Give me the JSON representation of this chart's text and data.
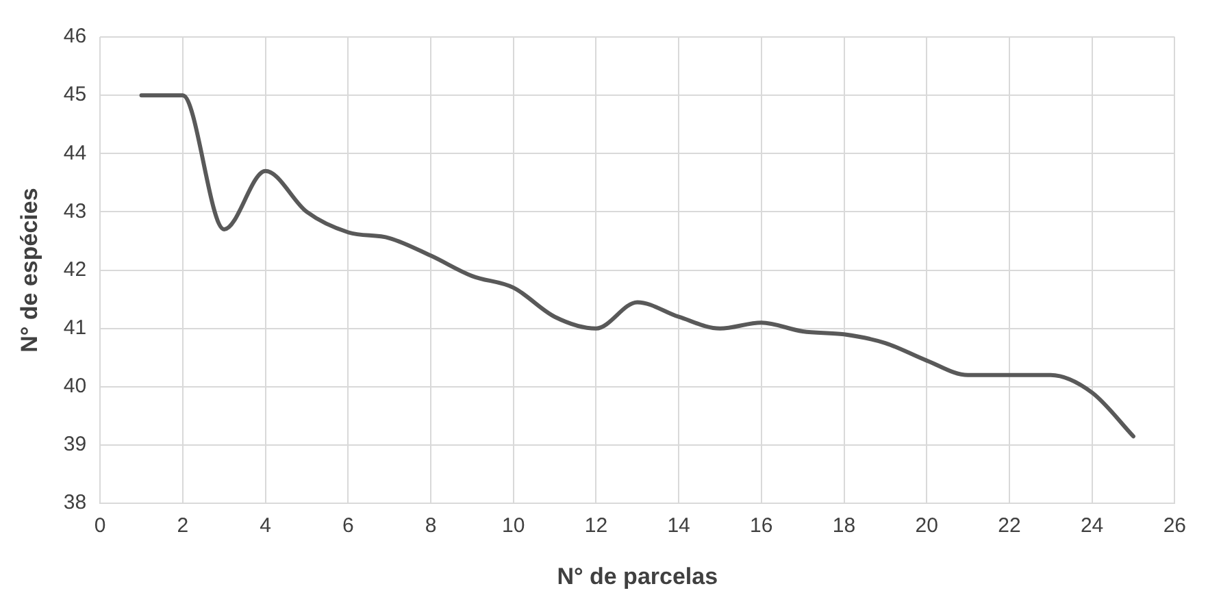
{
  "chart_data": {
    "type": "line",
    "xlabel": "N° de parcelas",
    "ylabel": "N° de espécies",
    "x": [
      1,
      2,
      3,
      4,
      5,
      6,
      7,
      8,
      9,
      10,
      11,
      12,
      13,
      14,
      15,
      16,
      17,
      18,
      19,
      20,
      21,
      22,
      23,
      24,
      25
    ],
    "series": [
      {
        "color": "#595959",
        "values": [
          45.0,
          45.0,
          42.7,
          43.7,
          43.0,
          42.65,
          42.55,
          42.25,
          41.9,
          41.7,
          41.2,
          41.0,
          41.45,
          41.2,
          41.0,
          41.1,
          40.95,
          40.9,
          40.75,
          40.45,
          40.2,
          40.2,
          40.2,
          39.9,
          39.15
        ]
      }
    ],
    "xlim": [
      0,
      26
    ],
    "xticks": [
      0,
      2,
      4,
      6,
      8,
      10,
      12,
      14,
      16,
      18,
      20,
      22,
      24,
      26
    ],
    "ylim": [
      38,
      46
    ],
    "yticks": [
      38,
      39,
      40,
      41,
      42,
      43,
      44,
      45,
      46
    ],
    "grid": true,
    "legend": false,
    "marker": "none",
    "line_style": "solid"
  }
}
